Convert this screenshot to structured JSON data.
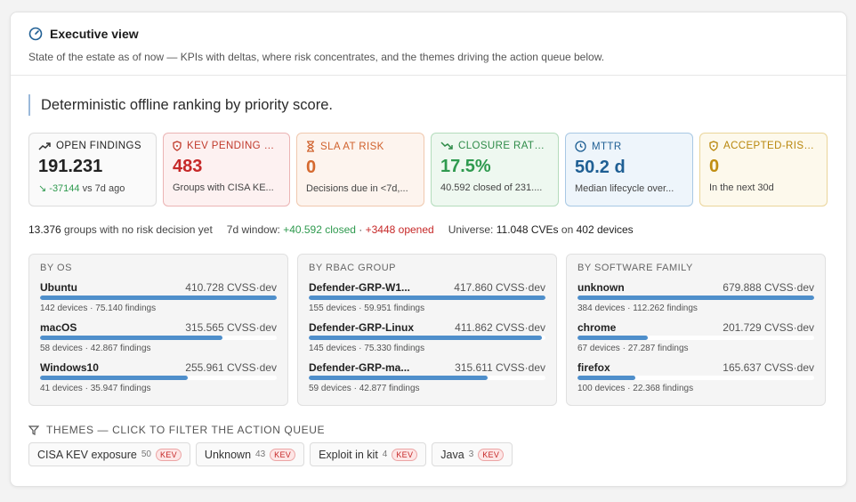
{
  "header": {
    "title": "Executive view",
    "subtitle": "State of the estate as of now — KPIs with deltas, where risk concentrates, and the themes driving the action queue below."
  },
  "banner": "Deterministic offline ranking by priority score.",
  "kpis": [
    {
      "label": "Open findings",
      "value": "191.231",
      "delta": "-37144",
      "delta_suffix": "vs 7d ago",
      "icon": "trend-up-icon"
    },
    {
      "label": "KEV pending d...",
      "value": "483",
      "sub": "Groups with CISA KE...",
      "icon": "shield-icon"
    },
    {
      "label": "SLA at risk",
      "value": "0",
      "sub": "Decisions due in <7d,...",
      "icon": "hourglass-icon"
    },
    {
      "label": "Closure rate ...",
      "value": "17.5%",
      "sub": "40.592 closed of 231....",
      "icon": "trend-down-icon"
    },
    {
      "label": "MTTR",
      "value": "50.2 d",
      "sub": "Median lifecycle over...",
      "icon": "clock-icon"
    },
    {
      "label": "Accepted-risk...",
      "value": "0",
      "sub": "In the next 30d",
      "icon": "shield-icon"
    }
  ],
  "summary": {
    "groups_count": "13.376",
    "groups_text": "groups with no risk decision yet",
    "window_label": "7d window:",
    "closed": "+40.592 closed",
    "sep": "·",
    "opened": "+3448 opened",
    "universe_label": "Universe:",
    "cves": "11.048 CVEs",
    "on": "on",
    "devices": "402 devices"
  },
  "panels": [
    {
      "title": "By OS",
      "rows": [
        {
          "name": "Ubuntu",
          "value": "410.728 CVSS·dev",
          "meta": "142 devices · 75.140 findings",
          "fill": 1.0
        },
        {
          "name": "macOS",
          "value": "315.565 CVSS·dev",
          "meta": "58 devices · 42.867 findings",
          "fill": 0.77
        },
        {
          "name": "Windows10",
          "value": "255.961 CVSS·dev",
          "meta": "41 devices · 35.947 findings",
          "fill": 0.623
        }
      ]
    },
    {
      "title": "By RBAC group",
      "rows": [
        {
          "name": "Defender-GRP-W1...",
          "value": "417.860 CVSS·dev",
          "meta": "155 devices · 59.951 findings",
          "fill": 1.0
        },
        {
          "name": "Defender-GRP-Linux",
          "value": "411.862 CVSS·dev",
          "meta": "145 devices · 75.330 findings",
          "fill": 0.986
        },
        {
          "name": "Defender-GRP-ma...",
          "value": "315.611 CVSS·dev",
          "meta": "59 devices · 42.877 findings",
          "fill": 0.755
        }
      ]
    },
    {
      "title": "By software family",
      "rows": [
        {
          "name": "unknown",
          "value": "679.888 CVSS·dev",
          "meta": "384 devices · 112.262 findings",
          "fill": 1.0
        },
        {
          "name": "chrome",
          "value": "201.729 CVSS·dev",
          "meta": "67 devices · 27.287 findings",
          "fill": 0.297
        },
        {
          "name": "firefox",
          "value": "165.637 CVSS·dev",
          "meta": "100 devices · 22.368 findings",
          "fill": 0.244
        }
      ]
    }
  ],
  "themes": {
    "title": "Themes — click to filter the action queue",
    "chips": [
      {
        "label": "CISA KEV exposure",
        "count": "50",
        "badge": "KEV"
      },
      {
        "label": "Unknown",
        "count": "43",
        "badge": "KEV"
      },
      {
        "label": "Exploit in kit",
        "count": "4",
        "badge": "KEV"
      },
      {
        "label": "Java",
        "count": "3",
        "badge": "KEV"
      }
    ]
  },
  "colors": {
    "accent": "#1f5f94",
    "bar": "#4f8fcb",
    "red": "#c62828",
    "green": "#2f9a4f"
  }
}
